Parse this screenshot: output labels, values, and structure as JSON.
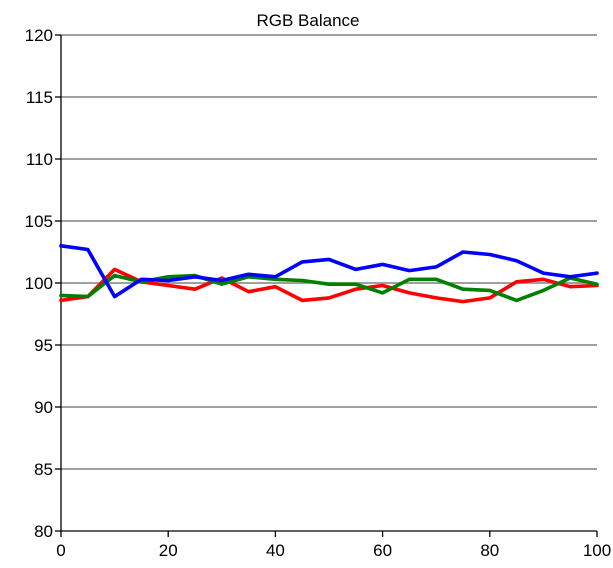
{
  "chart_data": {
    "type": "line",
    "title": "RGB Balance",
    "xlabel": "",
    "ylabel": "",
    "xlim": [
      0,
      100
    ],
    "ylim": [
      80,
      120
    ],
    "x_ticks": [
      0,
      20,
      40,
      60,
      80,
      100
    ],
    "y_ticks": [
      80,
      85,
      90,
      95,
      100,
      105,
      110,
      115,
      120
    ],
    "grid": true,
    "legend": "none",
    "x": [
      0,
      5,
      10,
      15,
      20,
      25,
      30,
      35,
      40,
      45,
      50,
      55,
      60,
      65,
      70,
      75,
      80,
      85,
      90,
      95,
      100
    ],
    "series": [
      {
        "color": "#ff0000",
        "values": [
          98.6,
          98.9,
          101.1,
          100.1,
          99.8,
          99.5,
          100.4,
          99.3,
          99.7,
          98.6,
          98.8,
          99.5,
          99.8,
          99.2,
          98.8,
          98.5,
          98.8,
          100.1,
          100.3,
          99.7,
          99.8
        ]
      },
      {
        "color": "#008000",
        "values": [
          99.0,
          98.9,
          100.6,
          100.1,
          100.5,
          100.6,
          99.9,
          100.5,
          100.3,
          100.2,
          99.9,
          99.9,
          99.2,
          100.3,
          100.3,
          99.5,
          99.4,
          98.6,
          99.4,
          100.4,
          99.9
        ]
      },
      {
        "color": "#0000ff",
        "values": [
          103.0,
          102.7,
          98.9,
          100.3,
          100.2,
          100.5,
          100.2,
          100.7,
          100.5,
          101.7,
          101.9,
          101.1,
          101.5,
          101.0,
          101.3,
          102.5,
          102.3,
          101.8,
          100.8,
          100.5,
          100.8
        ]
      }
    ],
    "colors": {
      "gridline": "#808080",
      "background": "#ffffff"
    }
  }
}
